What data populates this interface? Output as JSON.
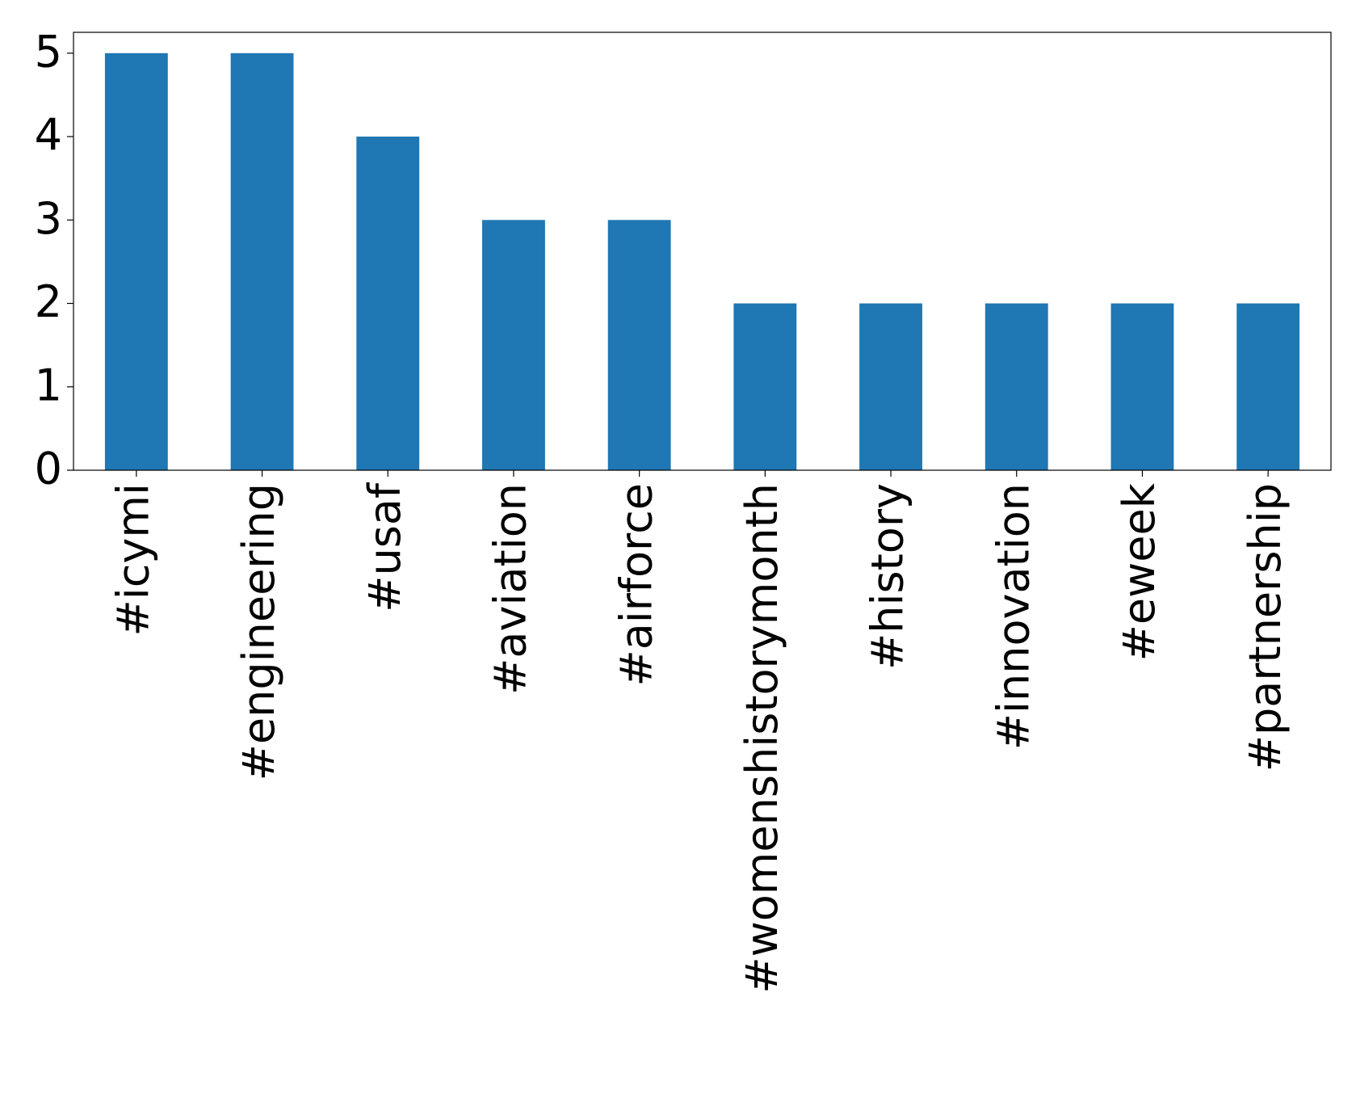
{
  "chart_data": {
    "type": "bar",
    "categories": [
      "#icymi",
      "#engineering",
      "#usaf",
      "#aviation",
      "#airforce",
      "#womenshistorymonth",
      "#history",
      "#innovation",
      "#eweek",
      "#partnership"
    ],
    "values": [
      5,
      5,
      4,
      3,
      3,
      2,
      2,
      2,
      2,
      2
    ],
    "color": "#1f77b4",
    "ylim": [
      0,
      5.25
    ],
    "yticks": [
      0,
      1,
      2,
      3,
      4,
      5
    ],
    "grid": false
  }
}
